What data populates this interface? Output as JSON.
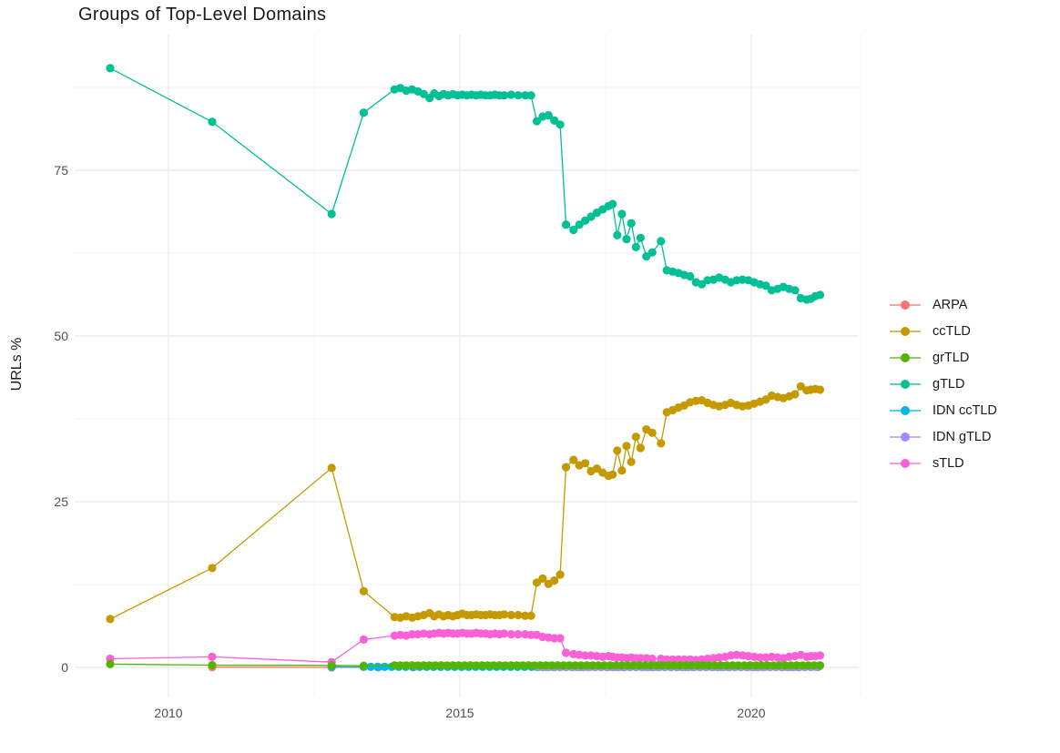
{
  "chart_data": {
    "type": "line",
    "title": "Groups of Top-Level Domains",
    "xlabel": "",
    "ylabel": "URLs %",
    "x_ticks": [
      2010,
      2015,
      2020
    ],
    "y_ticks": [
      0,
      25,
      50,
      75
    ],
    "x_minor": [
      2012.5,
      2017.5,
      2021.88
    ],
    "y_minor": [
      12.5,
      37.5,
      62.5,
      87.5
    ],
    "xlim": [
      2008.4,
      2021.9
    ],
    "ylim": [
      -4.5,
      95
    ],
    "grid": "on",
    "legend_position": "right",
    "series": [
      {
        "name": "ARPA",
        "color": "#F8766D",
        "points": [
          [
            2010.75,
            0.05
          ],
          [
            2012.8,
            0.0
          ],
          [
            2013.6,
            0.02
          ],
          [
            2014.2,
            0.02
          ]
        ]
      },
      {
        "name": "ccTLD",
        "color": "#C49A00",
        "points": [
          [
            2009.0,
            7.3
          ],
          [
            2010.75,
            15.0
          ],
          [
            2012.8,
            30.1
          ],
          [
            2013.35,
            11.5
          ],
          [
            2013.88,
            7.6
          ],
          [
            2013.98,
            7.5
          ],
          [
            2014.08,
            7.7
          ],
          [
            2014.18,
            7.5
          ],
          [
            2014.28,
            7.7
          ],
          [
            2014.38,
            7.9
          ],
          [
            2014.48,
            8.2
          ],
          [
            2014.56,
            7.7
          ],
          [
            2014.64,
            8.0
          ],
          [
            2014.72,
            7.7
          ],
          [
            2014.8,
            7.9
          ],
          [
            2014.88,
            7.7
          ],
          [
            2014.96,
            7.9
          ],
          [
            2015.04,
            8.1
          ],
          [
            2015.12,
            7.9
          ],
          [
            2015.2,
            7.9
          ],
          [
            2015.28,
            8.0
          ],
          [
            2015.36,
            7.9
          ],
          [
            2015.44,
            7.9
          ],
          [
            2015.52,
            8.0
          ],
          [
            2015.6,
            7.9
          ],
          [
            2015.68,
            7.9
          ],
          [
            2015.76,
            8.0
          ],
          [
            2015.88,
            7.9
          ],
          [
            2016.0,
            7.9
          ],
          [
            2016.12,
            7.8
          ],
          [
            2016.22,
            7.8
          ],
          [
            2016.32,
            12.8
          ],
          [
            2016.42,
            13.4
          ],
          [
            2016.52,
            12.6
          ],
          [
            2016.62,
            13.1
          ],
          [
            2016.72,
            14.0
          ],
          [
            2016.82,
            30.2
          ],
          [
            2016.95,
            31.3
          ],
          [
            2017.05,
            30.5
          ],
          [
            2017.15,
            30.8
          ],
          [
            2017.25,
            29.6
          ],
          [
            2017.35,
            30.0
          ],
          [
            2017.45,
            29.4
          ],
          [
            2017.55,
            28.9
          ],
          [
            2017.62,
            29.1
          ],
          [
            2017.7,
            32.7
          ],
          [
            2017.78,
            29.7
          ],
          [
            2017.86,
            33.4
          ],
          [
            2017.94,
            31.0
          ],
          [
            2018.02,
            34.8
          ],
          [
            2018.1,
            33.1
          ],
          [
            2018.2,
            35.9
          ],
          [
            2018.3,
            35.4
          ],
          [
            2018.45,
            33.8
          ],
          [
            2018.55,
            38.5
          ],
          [
            2018.65,
            38.8
          ],
          [
            2018.75,
            39.2
          ],
          [
            2018.85,
            39.5
          ],
          [
            2018.95,
            40.0
          ],
          [
            2019.05,
            40.2
          ],
          [
            2019.15,
            40.3
          ],
          [
            2019.25,
            39.9
          ],
          [
            2019.35,
            39.6
          ],
          [
            2019.45,
            39.4
          ],
          [
            2019.55,
            39.6
          ],
          [
            2019.65,
            39.9
          ],
          [
            2019.75,
            39.6
          ],
          [
            2019.85,
            39.4
          ],
          [
            2019.95,
            39.5
          ],
          [
            2020.05,
            39.8
          ],
          [
            2020.15,
            40.1
          ],
          [
            2020.25,
            40.4
          ],
          [
            2020.35,
            41.0
          ],
          [
            2020.45,
            40.8
          ],
          [
            2020.55,
            40.6
          ],
          [
            2020.65,
            40.9
          ],
          [
            2020.75,
            41.2
          ],
          [
            2020.85,
            42.4
          ],
          [
            2020.95,
            41.8
          ],
          [
            2021.02,
            41.9
          ],
          [
            2021.1,
            42.0
          ],
          [
            2021.18,
            41.9
          ]
        ]
      },
      {
        "name": "grTLD",
        "color": "#53B400",
        "points": [
          [
            2009.0,
            0.5
          ],
          [
            2010.75,
            0.35
          ],
          [
            2012.8,
            0.3
          ],
          [
            2013.35,
            0.25
          ]
        ],
        "span": {
          "start": 2013.88,
          "end": 2021.18,
          "step": 0.1,
          "value": 0.3
        }
      },
      {
        "name": "gTLD",
        "color": "#00C094",
        "points": [
          [
            2009.0,
            90.4
          ],
          [
            2010.75,
            82.3
          ],
          [
            2012.8,
            68.4
          ],
          [
            2013.35,
            83.7
          ],
          [
            2013.88,
            87.2
          ],
          [
            2013.98,
            87.4
          ],
          [
            2014.08,
            87.0
          ],
          [
            2014.18,
            87.2
          ],
          [
            2014.28,
            86.9
          ],
          [
            2014.38,
            86.5
          ],
          [
            2014.48,
            85.9
          ],
          [
            2014.56,
            86.6
          ],
          [
            2014.64,
            86.2
          ],
          [
            2014.72,
            86.5
          ],
          [
            2014.8,
            86.3
          ],
          [
            2014.88,
            86.5
          ],
          [
            2014.96,
            86.3
          ],
          [
            2015.04,
            86.4
          ],
          [
            2015.12,
            86.3
          ],
          [
            2015.2,
            86.4
          ],
          [
            2015.28,
            86.3
          ],
          [
            2015.36,
            86.4
          ],
          [
            2015.44,
            86.3
          ],
          [
            2015.52,
            86.3
          ],
          [
            2015.6,
            86.4
          ],
          [
            2015.68,
            86.3
          ],
          [
            2015.76,
            86.3
          ],
          [
            2015.88,
            86.4
          ],
          [
            2016.0,
            86.3
          ],
          [
            2016.12,
            86.3
          ],
          [
            2016.22,
            86.3
          ],
          [
            2016.32,
            82.4
          ],
          [
            2016.42,
            83.1
          ],
          [
            2016.52,
            83.3
          ],
          [
            2016.62,
            82.5
          ],
          [
            2016.72,
            81.9
          ],
          [
            2016.82,
            66.8
          ],
          [
            2016.95,
            66.0
          ],
          [
            2017.05,
            66.8
          ],
          [
            2017.15,
            67.4
          ],
          [
            2017.25,
            68.0
          ],
          [
            2017.35,
            68.6
          ],
          [
            2017.45,
            69.1
          ],
          [
            2017.55,
            69.6
          ],
          [
            2017.62,
            69.9
          ],
          [
            2017.7,
            65.2
          ],
          [
            2017.78,
            68.4
          ],
          [
            2017.86,
            64.6
          ],
          [
            2017.94,
            67.0
          ],
          [
            2018.02,
            63.4
          ],
          [
            2018.1,
            64.8
          ],
          [
            2018.2,
            62.0
          ],
          [
            2018.3,
            62.6
          ],
          [
            2018.45,
            64.3
          ],
          [
            2018.55,
            59.9
          ],
          [
            2018.65,
            59.7
          ],
          [
            2018.75,
            59.5
          ],
          [
            2018.85,
            59.2
          ],
          [
            2018.95,
            59.0
          ],
          [
            2019.05,
            58.1
          ],
          [
            2019.15,
            57.8
          ],
          [
            2019.25,
            58.4
          ],
          [
            2019.35,
            58.5
          ],
          [
            2019.45,
            58.8
          ],
          [
            2019.55,
            58.5
          ],
          [
            2019.65,
            58.1
          ],
          [
            2019.75,
            58.4
          ],
          [
            2019.85,
            58.5
          ],
          [
            2019.95,
            58.4
          ],
          [
            2020.05,
            58.1
          ],
          [
            2020.15,
            57.8
          ],
          [
            2020.25,
            57.6
          ],
          [
            2020.35,
            56.9
          ],
          [
            2020.45,
            57.1
          ],
          [
            2020.55,
            57.4
          ],
          [
            2020.65,
            57.1
          ],
          [
            2020.75,
            56.9
          ],
          [
            2020.85,
            55.7
          ],
          [
            2020.95,
            55.5
          ],
          [
            2021.02,
            55.6
          ],
          [
            2021.1,
            56.0
          ],
          [
            2021.18,
            56.2
          ]
        ]
      },
      {
        "name": "IDN ccTLD",
        "color": "#00B6EB",
        "points": [
          [
            2012.8,
            0.1
          ]
        ],
        "span": {
          "start": 2013.35,
          "end": 2021.18,
          "step": 0.12,
          "value": 0.08
        }
      },
      {
        "name": "IDN gTLD",
        "color": "#A58AFF",
        "span": {
          "start": 2016.32,
          "end": 2021.18,
          "step": 0.1,
          "value": 0.05
        }
      },
      {
        "name": "sTLD",
        "color": "#FB61D7",
        "points": [
          [
            2009.0,
            1.3
          ],
          [
            2010.75,
            1.6
          ],
          [
            2012.8,
            0.8
          ],
          [
            2013.35,
            4.2
          ],
          [
            2013.88,
            4.8
          ],
          [
            2013.98,
            4.9
          ],
          [
            2014.08,
            4.8
          ],
          [
            2014.18,
            5.0
          ],
          [
            2014.28,
            5.0
          ],
          [
            2014.38,
            5.1
          ],
          [
            2014.48,
            5.0
          ],
          [
            2014.56,
            5.1
          ],
          [
            2014.64,
            5.2
          ],
          [
            2014.72,
            5.1
          ],
          [
            2014.8,
            5.2
          ],
          [
            2014.88,
            5.1
          ],
          [
            2014.96,
            5.1
          ],
          [
            2015.04,
            5.2
          ],
          [
            2015.12,
            5.1
          ],
          [
            2015.2,
            5.1
          ],
          [
            2015.28,
            5.2
          ],
          [
            2015.36,
            5.1
          ],
          [
            2015.44,
            5.1
          ],
          [
            2015.52,
            5.0
          ],
          [
            2015.6,
            5.1
          ],
          [
            2015.68,
            5.0
          ],
          [
            2015.76,
            5.1
          ],
          [
            2015.88,
            5.0
          ],
          [
            2016.0,
            5.0
          ],
          [
            2016.12,
            5.0
          ],
          [
            2016.22,
            4.9
          ],
          [
            2016.32,
            4.9
          ],
          [
            2016.42,
            4.6
          ],
          [
            2016.52,
            4.5
          ],
          [
            2016.62,
            4.4
          ],
          [
            2016.72,
            4.4
          ],
          [
            2016.82,
            2.2
          ],
          [
            2016.95,
            2.0
          ],
          [
            2017.05,
            1.9
          ],
          [
            2017.15,
            1.8
          ],
          [
            2017.25,
            1.8
          ],
          [
            2017.35,
            1.7
          ],
          [
            2017.45,
            1.6
          ],
          [
            2017.55,
            1.7
          ],
          [
            2017.62,
            1.6
          ],
          [
            2017.7,
            1.5
          ],
          [
            2017.78,
            1.5
          ],
          [
            2017.86,
            1.4
          ],
          [
            2017.94,
            1.5
          ],
          [
            2018.02,
            1.4
          ],
          [
            2018.1,
            1.4
          ],
          [
            2018.2,
            1.4
          ],
          [
            2018.3,
            1.3
          ],
          [
            2018.45,
            1.3
          ],
          [
            2018.55,
            1.2
          ],
          [
            2018.65,
            1.2
          ],
          [
            2018.75,
            1.2
          ],
          [
            2018.85,
            1.2
          ],
          [
            2018.95,
            1.2
          ],
          [
            2019.05,
            1.1
          ],
          [
            2019.15,
            1.2
          ],
          [
            2019.25,
            1.3
          ],
          [
            2019.35,
            1.4
          ],
          [
            2019.45,
            1.5
          ],
          [
            2019.55,
            1.6
          ],
          [
            2019.65,
            1.8
          ],
          [
            2019.75,
            1.9
          ],
          [
            2019.85,
            1.8
          ],
          [
            2019.95,
            1.7
          ],
          [
            2020.05,
            1.6
          ],
          [
            2020.15,
            1.5
          ],
          [
            2020.25,
            1.5
          ],
          [
            2020.35,
            1.6
          ],
          [
            2020.45,
            1.5
          ],
          [
            2020.55,
            1.4
          ],
          [
            2020.65,
            1.6
          ],
          [
            2020.75,
            1.7
          ],
          [
            2020.85,
            1.9
          ],
          [
            2020.95,
            1.6
          ],
          [
            2021.02,
            1.7
          ],
          [
            2021.1,
            1.7
          ],
          [
            2021.18,
            1.8
          ]
        ]
      }
    ]
  },
  "colors": {
    "background": "#ffffff",
    "grid_major": "#e8e8e8",
    "grid_minor": "#f3f3f3",
    "tick_text": "#4e4e4e",
    "title_text": "#1a1a1a"
  }
}
